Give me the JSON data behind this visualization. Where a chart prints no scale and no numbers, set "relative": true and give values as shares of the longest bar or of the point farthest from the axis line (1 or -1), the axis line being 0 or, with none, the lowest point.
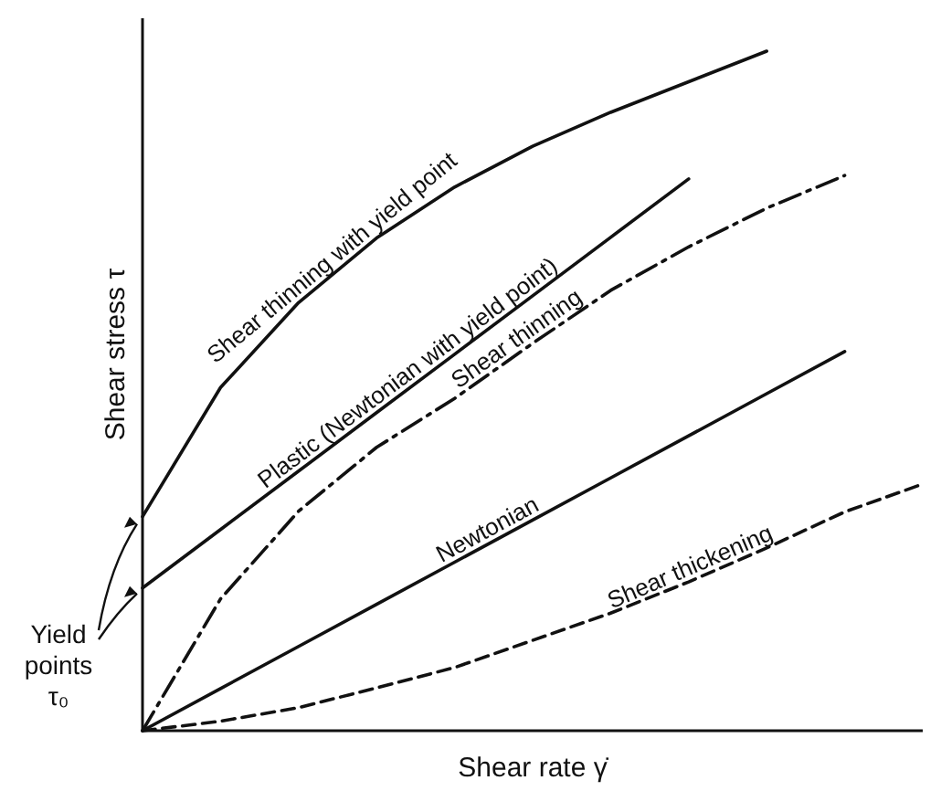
{
  "chart_data": {
    "type": "line",
    "relative": true,
    "xlabel": "Shear rate γ̇",
    "ylabel": "Shear stress τ",
    "legend": false,
    "marker": "none",
    "categories": [
      null,
      null,
      null,
      null,
      null,
      null,
      null,
      null,
      null,
      null,
      null
    ],
    "series": [
      {
        "name": "Shear thinning with yield point",
        "color": "#111111",
        "line_style": "solid",
        "values": [
          0.315,
          0.505,
          0.63,
          0.725,
          0.8,
          0.86,
          0.91,
          0.955,
          1,
          null,
          null
        ]
      },
      {
        "name": "Plastic (Newtonian with yield point)",
        "color": "#111111",
        "line_style": "solid",
        "values": [
          0.21,
          0.296,
          0.382,
          0.468,
          0.554,
          0.64,
          0.726,
          0.812,
          null,
          null,
          null
        ]
      },
      {
        "name": "Shear  thinning",
        "color": "#111111",
        "line_style": "dashdot",
        "values": [
          0,
          0.194,
          0.323,
          0.417,
          0.489,
          0.57,
          0.648,
          0.712,
          0.769,
          0.817,
          null
        ]
      },
      {
        "name": "Newtonian",
        "color": "#111111",
        "line_style": "solid",
        "values": [
          0,
          0.062,
          0.124,
          0.186,
          0.248,
          0.31,
          0.372,
          0.434,
          0.496,
          0.558,
          null
        ]
      },
      {
        "name": "Shear thickening",
        "color": "#111111",
        "line_style": "dashed",
        "values": [
          0,
          0.014,
          0.034,
          0.063,
          0.093,
          0.133,
          0.173,
          0.219,
          0.269,
          0.322,
          0.363
        ]
      }
    ],
    "annotations": [
      "Yield points τ₀"
    ]
  }
}
